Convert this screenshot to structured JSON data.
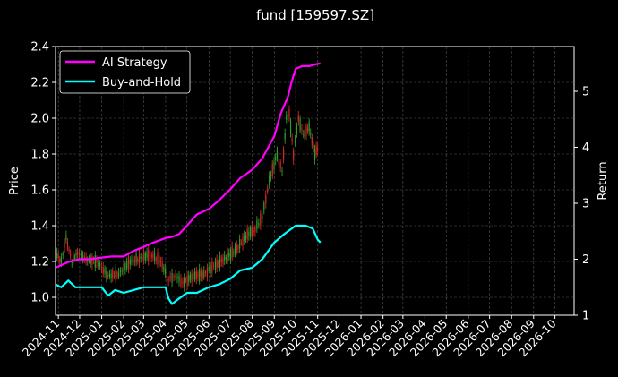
{
  "chart_data": {
    "type": "line",
    "title": "fund [159597.SZ]",
    "ylabel_left": "Price",
    "ylabel_right": "Return",
    "ylim_left": [
      0.9,
      2.4
    ],
    "ylim_right": [
      1.0,
      5.8
    ],
    "yticks_left": [
      "1.0",
      "1.2",
      "1.4",
      "1.6",
      "1.8",
      "2.0",
      "2.2",
      "2.4"
    ],
    "yticks_right": [
      "1",
      "2",
      "3",
      "4",
      "5"
    ],
    "x_range": [
      "2024-10-28",
      "2026-10-28"
    ],
    "x_ticks": [
      "2024-11",
      "2024-12",
      "2025-01",
      "2025-02",
      "2025-03",
      "2025-04",
      "2025-05",
      "2025-06",
      "2025-07",
      "2025-08",
      "2025-09",
      "2025-10",
      "2025-11",
      "2025-12",
      "2026-01",
      "2026-02",
      "2026-03",
      "2026-04",
      "2026-05",
      "2026-06",
      "2026-07",
      "2026-08",
      "2026-09",
      "2026-10"
    ],
    "grid": true,
    "legend_placement": "top-left",
    "colors": {
      "ai_strategy": "#ff00ff",
      "buy_and_hold": "#00ffff",
      "candle_up": "#d62728",
      "candle_down": "#2ca02c",
      "background": "#000000",
      "text": "#ffffff"
    },
    "series": [
      {
        "name": "AI Strategy",
        "axis": "right",
        "points": [
          [
            "2024-10-28",
            1.85
          ],
          [
            "2024-11-15",
            1.95
          ],
          [
            "2024-12-01",
            2.0
          ],
          [
            "2024-12-15",
            2.0
          ],
          [
            "2025-01-01",
            2.03
          ],
          [
            "2025-01-15",
            2.05
          ],
          [
            "2025-02-01",
            2.05
          ],
          [
            "2025-02-15",
            2.15
          ],
          [
            "2025-03-01",
            2.22
          ],
          [
            "2025-03-15",
            2.3
          ],
          [
            "2025-04-01",
            2.38
          ],
          [
            "2025-04-10",
            2.4
          ],
          [
            "2025-04-20",
            2.45
          ],
          [
            "2025-05-01",
            2.6
          ],
          [
            "2025-05-15",
            2.8
          ],
          [
            "2025-06-01",
            2.9
          ],
          [
            "2025-06-15",
            3.05
          ],
          [
            "2025-07-01",
            3.25
          ],
          [
            "2025-07-15",
            3.45
          ],
          [
            "2025-08-01",
            3.6
          ],
          [
            "2025-08-15",
            3.8
          ],
          [
            "2025-09-01",
            4.2
          ],
          [
            "2025-09-10",
            4.6
          ],
          [
            "2025-09-20",
            4.9
          ],
          [
            "2025-09-25",
            5.15
          ],
          [
            "2025-10-01",
            5.4
          ],
          [
            "2025-10-10",
            5.45
          ],
          [
            "2025-10-20",
            5.45
          ],
          [
            "2025-10-28",
            5.48
          ],
          [
            "2025-11-05",
            5.5
          ]
        ]
      },
      {
        "name": "Buy-and-Hold",
        "axis": "right",
        "points": [
          [
            "2024-10-28",
            1.55
          ],
          [
            "2024-11-05",
            1.5
          ],
          [
            "2024-11-15",
            1.62
          ],
          [
            "2024-11-25",
            1.5
          ],
          [
            "2024-12-15",
            1.5
          ],
          [
            "2025-01-01",
            1.5
          ],
          [
            "2025-01-10",
            1.35
          ],
          [
            "2025-01-20",
            1.45
          ],
          [
            "2025-02-01",
            1.4
          ],
          [
            "2025-02-15",
            1.45
          ],
          [
            "2025-03-01",
            1.5
          ],
          [
            "2025-03-15",
            1.5
          ],
          [
            "2025-04-01",
            1.5
          ],
          [
            "2025-04-05",
            1.3
          ],
          [
            "2025-04-10",
            1.2
          ],
          [
            "2025-04-20",
            1.3
          ],
          [
            "2025-05-01",
            1.4
          ],
          [
            "2025-05-15",
            1.4
          ],
          [
            "2025-06-01",
            1.5
          ],
          [
            "2025-06-15",
            1.55
          ],
          [
            "2025-07-01",
            1.65
          ],
          [
            "2025-07-15",
            1.8
          ],
          [
            "2025-08-01",
            1.85
          ],
          [
            "2025-08-15",
            2.0
          ],
          [
            "2025-09-01",
            2.3
          ],
          [
            "2025-09-15",
            2.45
          ],
          [
            "2025-10-01",
            2.6
          ],
          [
            "2025-10-15",
            2.6
          ],
          [
            "2025-10-25",
            2.55
          ],
          [
            "2025-11-01",
            2.35
          ],
          [
            "2025-11-05",
            2.3
          ]
        ]
      },
      {
        "name": "price",
        "axis": "left",
        "style": "candlestick",
        "points": [
          [
            "2024-10-28",
            1.25
          ],
          [
            "2024-11-05",
            1.2
          ],
          [
            "2024-11-12",
            1.33
          ],
          [
            "2024-11-20",
            1.2
          ],
          [
            "2024-11-28",
            1.25
          ],
          [
            "2024-12-10",
            1.21
          ],
          [
            "2024-12-25",
            1.2
          ],
          [
            "2025-01-10",
            1.12
          ],
          [
            "2025-01-25",
            1.13
          ],
          [
            "2025-02-10",
            1.2
          ],
          [
            "2025-02-25",
            1.22
          ],
          [
            "2025-03-10",
            1.24
          ],
          [
            "2025-03-25",
            1.2
          ],
          [
            "2025-04-05",
            1.1
          ],
          [
            "2025-04-15",
            1.12
          ],
          [
            "2025-04-25",
            1.08
          ],
          [
            "2025-05-10",
            1.12
          ],
          [
            "2025-05-25",
            1.13
          ],
          [
            "2025-06-10",
            1.18
          ],
          [
            "2025-06-25",
            1.22
          ],
          [
            "2025-07-10",
            1.27
          ],
          [
            "2025-07-25",
            1.35
          ],
          [
            "2025-08-05",
            1.38
          ],
          [
            "2025-08-15",
            1.45
          ],
          [
            "2025-08-25",
            1.65
          ],
          [
            "2025-09-05",
            1.8
          ],
          [
            "2025-09-12",
            1.7
          ],
          [
            "2025-09-20",
            2.1
          ],
          [
            "2025-09-28",
            1.8
          ],
          [
            "2025-10-05",
            2.0
          ],
          [
            "2025-10-12",
            1.9
          ],
          [
            "2025-10-20",
            1.95
          ],
          [
            "2025-10-28",
            1.8
          ],
          [
            "2025-11-03",
            1.85
          ]
        ]
      }
    ]
  }
}
